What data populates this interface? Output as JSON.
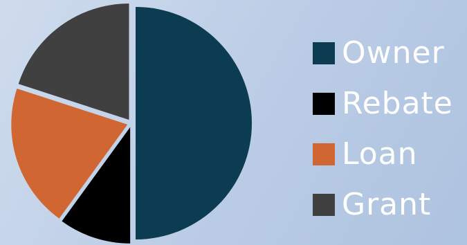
{
  "chart_data": {
    "type": "pie",
    "slices": [
      {
        "label": "Owner",
        "value": 50,
        "color": "#0b3c52"
      },
      {
        "label": "Rebate",
        "value": 10,
        "color": "#000000"
      },
      {
        "label": "Loan",
        "value": 20,
        "color": "#d06632"
      },
      {
        "label": "Grant",
        "value": 20,
        "color": "#404040"
      }
    ],
    "legend": "right",
    "exploded": true
  }
}
